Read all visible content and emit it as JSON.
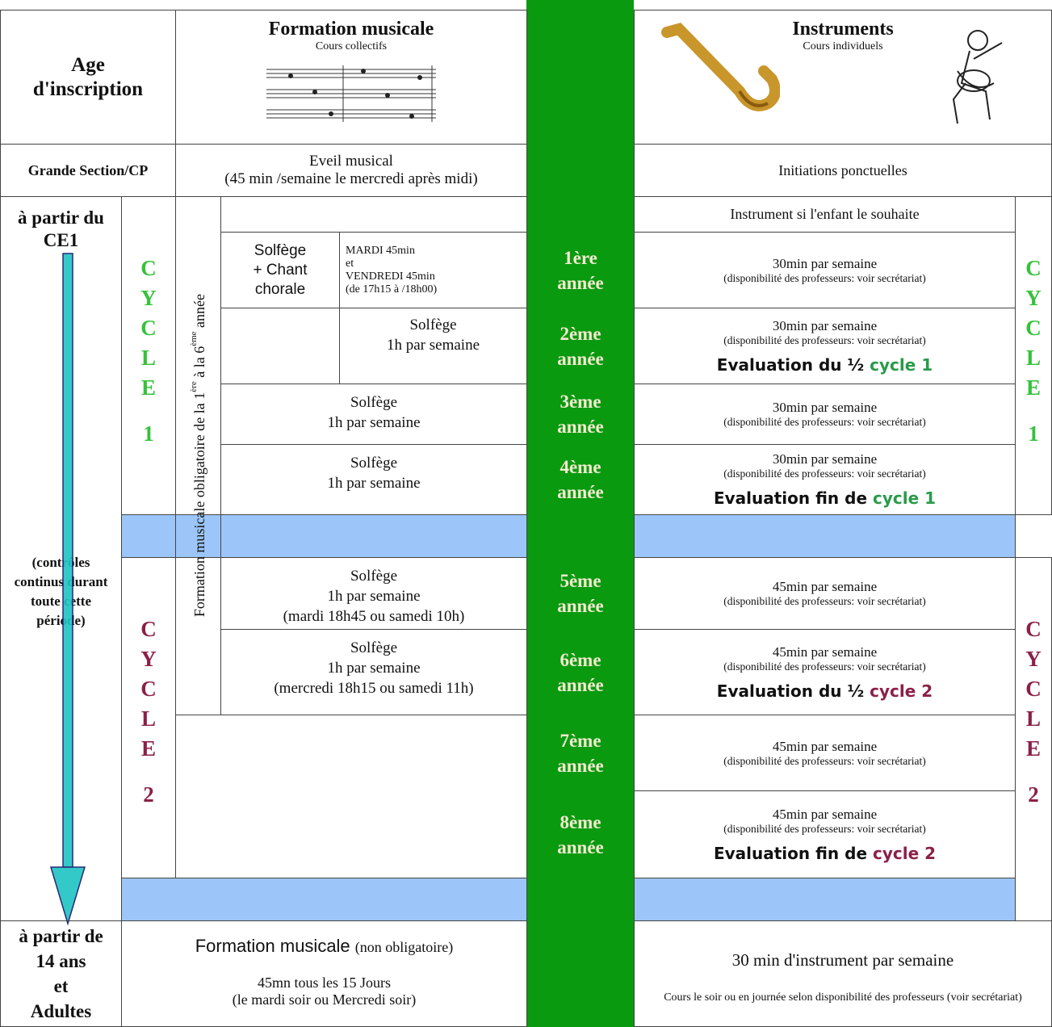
{
  "header": {
    "age": "Age d'inscription",
    "formation_title": "Formation musicale",
    "formation_subtitle": "Cours collectifs",
    "instruments_title": "Instruments",
    "instruments_subtitle": "Cours individuels"
  },
  "eveil": {
    "age": "Grande Section/CP",
    "formation": "Eveil musical",
    "formation_detail": "(45 min /semaine le mercredi après midi)",
    "instruments": "Initiations ponctuelles"
  },
  "ce1": {
    "age": "à partir du CE1",
    "note": "(contrôles continus durant toute cette période)",
    "instrument_intro": "Instrument si l'enfant le souhaite"
  },
  "obligatoire": [
    "Formation musicale obligatoire de la 1",
    "ère",
    " à la 6",
    "ème",
    " année"
  ],
  "cycles": [
    {
      "label": "CYCLE",
      "number": "1"
    },
    {
      "label": "CYCLE",
      "number": "2"
    }
  ],
  "years": [
    {
      "year": [
        "1ère",
        "année"
      ],
      "formation": {
        "name": [
          "Solfège",
          "+ Chant",
          "chorale"
        ],
        "schedule": [
          "MARDI  45min",
          "et",
          "VENDREDI 45min",
          "(de 17h15 à /18h00)"
        ]
      },
      "instrument": "30min par semaine",
      "instrument_note": "(disponibilité des professeurs: voir secrétariat)"
    },
    {
      "year": [
        "2ème",
        "année"
      ],
      "formation": {
        "lines": [
          "Solfège",
          "1h par semaine"
        ]
      },
      "instrument": "30min par semaine",
      "instrument_note": "(disponibilité des professeurs: voir secrétariat)",
      "evaluation": [
        "Evaluation du ½",
        "cycle 1"
      ]
    },
    {
      "year": [
        "3ème",
        "année"
      ],
      "formation": {
        "lines": [
          "Solfège",
          "1h par semaine"
        ]
      },
      "instrument": "30min par semaine",
      "instrument_note": "(disponibilité des professeurs: voir secrétariat)"
    },
    {
      "year": [
        "4ème",
        "année"
      ],
      "formation": {
        "lines": [
          "Solfège",
          "1h par semaine"
        ]
      },
      "instrument": "30min par semaine",
      "instrument_note": "(disponibilité des professeurs: voir secrétariat)",
      "evaluation": [
        "Evaluation fin de",
        "cycle 1"
      ]
    },
    {
      "year": [
        "5ème",
        "année"
      ],
      "formation": {
        "lines": [
          "Solfège",
          "1h par semaine",
          "(mardi 18h45 ou samedi 10h)"
        ]
      },
      "instrument": "45min par semaine",
      "instrument_note": "(disponibilité des professeurs: voir secrétariat)"
    },
    {
      "year": [
        "6ème",
        "année"
      ],
      "formation": {
        "lines": [
          "Solfège",
          "1h par semaine",
          "(mercredi 18h15 ou samedi 11h)"
        ]
      },
      "instrument": "45min par semaine",
      "instrument_note": "(disponibilité des professeurs: voir secrétariat)",
      "evaluation": [
        "Evaluation du ½",
        "cycle 2"
      ]
    },
    {
      "year": [
        "7ème",
        "année"
      ],
      "instrument": "45min par semaine",
      "instrument_note": "(disponibilité des professeurs: voir secrétariat)"
    },
    {
      "year": [
        "8ème",
        "année"
      ],
      "instrument": "45min par semaine",
      "instrument_note": "(disponibilité des professeurs: voir secrétariat)",
      "evaluation": [
        "Evaluation fin de",
        "cycle 2"
      ]
    }
  ],
  "adults": {
    "age": [
      "à partir de",
      "14 ans",
      "et",
      "Adultes"
    ],
    "formation": "Formation musicale",
    "formation_note": "(non obligatoire)",
    "schedule": "45mn tous les 15 Jours",
    "schedule_note": "(le mardi soir ou Mercredi soir)",
    "instrument": "30 min d'instrument par semaine",
    "instrument_note": "Cours le soir ou en journée selon disponibilité des professeurs (voir secrétariat)"
  }
}
